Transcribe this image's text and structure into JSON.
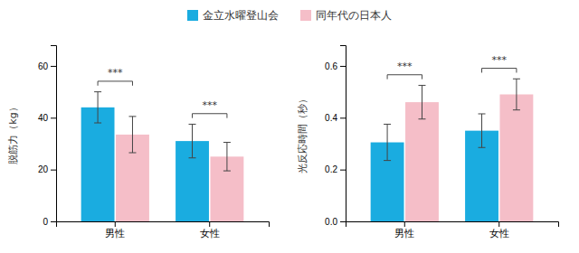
{
  "chart_data": [
    {
      "type": "bar",
      "categories": [
        "男性",
        "女性"
      ],
      "series": [
        {
          "name": "金立水曜登山会",
          "color": "#1aace0",
          "values": [
            44.0,
            31.0
          ],
          "errors": [
            6.0,
            6.5
          ]
        },
        {
          "name": "同年代の日本人",
          "color": "#f5bec8",
          "values": [
            33.5,
            25.0
          ],
          "errors": [
            7.0,
            5.5
          ]
        }
      ],
      "y_label": "脱筋力（kg）",
      "ylim": [
        0,
        68
      ],
      "yticks": [
        0,
        20,
        40,
        60
      ],
      "annotations": [
        "***",
        "***"
      ]
    },
    {
      "type": "bar",
      "categories": [
        "男性",
        "女性"
      ],
      "series": [
        {
          "color": "#1aace0",
          "values": [
            0.305,
            0.35
          ],
          "errors": [
            0.07,
            0.065
          ]
        },
        {
          "color": "#f5bec8",
          "values": [
            0.46,
            0.49
          ],
          "errors": [
            0.065,
            0.06
          ]
        }
      ],
      "y_label": "光反応時間（秒）",
      "ylim": [
        0,
        0.68
      ],
      "yticks": [
        {
          "value": 0,
          "label": "0.0"
        },
        0.2,
        0.4,
        0.6
      ],
      "annotations": [
        "***",
        "***"
      ]
    }
  ]
}
